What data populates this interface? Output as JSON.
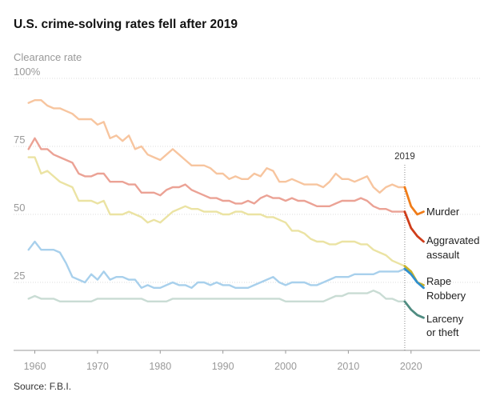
{
  "title": "U.S. crime-solving rates fell after 2019",
  "source": "Source: F.B.I.",
  "chart_data": {
    "type": "line",
    "title": "U.S. crime-solving rates fell after 2019",
    "ylabel": "Clearance rate",
    "xlim": [
      1957,
      2031
    ],
    "ylim": [
      0,
      100
    ],
    "x_ticks": [
      1960,
      1970,
      1980,
      1990,
      2000,
      2010,
      2020
    ],
    "y_ticks": [
      {
        "value": 100,
        "label": "100%"
      },
      {
        "value": 75,
        "label": "75"
      },
      {
        "value": 50,
        "label": "50"
      },
      {
        "value": 25,
        "label": "25"
      }
    ],
    "grid": "horizontal dotted",
    "annotation": {
      "x": 2019,
      "label": "2019"
    },
    "series": [
      {
        "name": "Murder",
        "color": "#f7c59f",
        "highlight_color": "#f07d1a",
        "x": [
          1959,
          1960,
          1961,
          1962,
          1963,
          1964,
          1965,
          1966,
          1967,
          1968,
          1969,
          1970,
          1971,
          1972,
          1973,
          1974,
          1975,
          1976,
          1977,
          1978,
          1979,
          1980,
          1981,
          1982,
          1983,
          1984,
          1985,
          1986,
          1987,
          1988,
          1989,
          1990,
          1991,
          1992,
          1993,
          1994,
          1995,
          1996,
          1997,
          1998,
          1999,
          2000,
          2001,
          2002,
          2003,
          2004,
          2005,
          2006,
          2007,
          2008,
          2009,
          2010,
          2011,
          2012,
          2013,
          2014,
          2015,
          2016,
          2017,
          2018,
          2019,
          2020,
          2021,
          2022
        ],
        "values": [
          91,
          92,
          92,
          90,
          89,
          89,
          88,
          87,
          85,
          85,
          85,
          83,
          84,
          78,
          79,
          77,
          79,
          74,
          75,
          72,
          71,
          70,
          72,
          74,
          72,
          70,
          68,
          68,
          68,
          67,
          65,
          65,
          63,
          64,
          63,
          63,
          65,
          64,
          67,
          66,
          62,
          62,
          63,
          62,
          61,
          61,
          61,
          60,
          62,
          65,
          63,
          63,
          62,
          63,
          64,
          60,
          58,
          60,
          61,
          60,
          60,
          53,
          50,
          51
        ]
      },
      {
        "name": "Aggravated assault",
        "color": "#eba295",
        "highlight_color": "#cf3d1a",
        "x": [
          1959,
          1960,
          1961,
          1962,
          1963,
          1964,
          1965,
          1966,
          1967,
          1968,
          1969,
          1970,
          1971,
          1972,
          1973,
          1974,
          1975,
          1976,
          1977,
          1978,
          1979,
          1980,
          1981,
          1982,
          1983,
          1984,
          1985,
          1986,
          1987,
          1988,
          1989,
          1990,
          1991,
          1992,
          1993,
          1994,
          1995,
          1996,
          1997,
          1998,
          1999,
          2000,
          2001,
          2002,
          2003,
          2004,
          2005,
          2006,
          2007,
          2008,
          2009,
          2010,
          2011,
          2012,
          2013,
          2014,
          2015,
          2016,
          2017,
          2018,
          2019,
          2020,
          2021,
          2022
        ],
        "values": [
          74,
          78,
          74,
          74,
          72,
          71,
          70,
          69,
          65,
          64,
          64,
          65,
          65,
          62,
          62,
          62,
          61,
          61,
          58,
          58,
          58,
          57,
          59,
          60,
          60,
          61,
          59,
          58,
          57,
          56,
          56,
          55,
          55,
          54,
          54,
          55,
          54,
          56,
          57,
          56,
          56,
          55,
          56,
          55,
          55,
          54,
          53,
          53,
          53,
          54,
          55,
          55,
          55,
          56,
          55,
          53,
          52,
          52,
          51,
          51,
          51,
          45,
          42,
          40
        ]
      },
      {
        "name": "Rape",
        "color": "#ebe3a3",
        "highlight_color": "#c8b32b",
        "x": [
          1959,
          1960,
          1961,
          1962,
          1963,
          1964,
          1965,
          1966,
          1967,
          1968,
          1969,
          1970,
          1971,
          1972,
          1973,
          1974,
          1975,
          1976,
          1977,
          1978,
          1979,
          1980,
          1981,
          1982,
          1983,
          1984,
          1985,
          1986,
          1987,
          1988,
          1989,
          1990,
          1991,
          1992,
          1993,
          1994,
          1995,
          1996,
          1997,
          1998,
          1999,
          2000,
          2001,
          2002,
          2003,
          2004,
          2005,
          2006,
          2007,
          2008,
          2009,
          2010,
          2011,
          2012,
          2013,
          2014,
          2015,
          2016,
          2017,
          2018,
          2019,
          2020,
          2021,
          2022
        ],
        "values": [
          71,
          71,
          65,
          66,
          64,
          62,
          61,
          60,
          55,
          55,
          55,
          54,
          55,
          50,
          50,
          50,
          51,
          50,
          49,
          47,
          48,
          47,
          49,
          51,
          52,
          53,
          52,
          52,
          51,
          51,
          51,
          50,
          50,
          51,
          51,
          50,
          50,
          50,
          49,
          49,
          48,
          47,
          44,
          44,
          43,
          41,
          40,
          40,
          39,
          39,
          40,
          40,
          40,
          39,
          39,
          37,
          36,
          35,
          33,
          32,
          31,
          29,
          25,
          24
        ]
      },
      {
        "name": "Robbery",
        "color": "#a8d0ec",
        "highlight_color": "#2f8fce",
        "x": [
          1959,
          1960,
          1961,
          1962,
          1963,
          1964,
          1965,
          1966,
          1967,
          1968,
          1969,
          1970,
          1971,
          1972,
          1973,
          1974,
          1975,
          1976,
          1977,
          1978,
          1979,
          1980,
          1981,
          1982,
          1983,
          1984,
          1985,
          1986,
          1987,
          1988,
          1989,
          1990,
          1991,
          1992,
          1993,
          1994,
          1995,
          1996,
          1997,
          1998,
          1999,
          2000,
          2001,
          2002,
          2003,
          2004,
          2005,
          2006,
          2007,
          2008,
          2009,
          2010,
          2011,
          2012,
          2013,
          2014,
          2015,
          2016,
          2017,
          2018,
          2019,
          2020,
          2021,
          2022
        ],
        "values": [
          37,
          40,
          37,
          37,
          37,
          36,
          32,
          27,
          26,
          25,
          28,
          26,
          29,
          26,
          27,
          27,
          26,
          26,
          23,
          24,
          23,
          23,
          24,
          25,
          24,
          24,
          23,
          25,
          25,
          24,
          25,
          24,
          24,
          23,
          23,
          23,
          24,
          25,
          26,
          27,
          25,
          24,
          25,
          25,
          25,
          24,
          24,
          25,
          26,
          27,
          27,
          27,
          28,
          28,
          28,
          28,
          29,
          29,
          29,
          29,
          30,
          28,
          25,
          23
        ]
      },
      {
        "name": "Larceny or theft",
        "color": "#c9dcd4",
        "highlight_color": "#4f8c81",
        "x": [
          1959,
          1960,
          1961,
          1962,
          1963,
          1964,
          1965,
          1966,
          1967,
          1968,
          1969,
          1970,
          1971,
          1972,
          1973,
          1974,
          1975,
          1976,
          1977,
          1978,
          1979,
          1980,
          1981,
          1982,
          1983,
          1984,
          1985,
          1986,
          1987,
          1988,
          1989,
          1990,
          1991,
          1992,
          1993,
          1994,
          1995,
          1996,
          1997,
          1998,
          1999,
          2000,
          2001,
          2002,
          2003,
          2004,
          2005,
          2006,
          2007,
          2008,
          2009,
          2010,
          2011,
          2012,
          2013,
          2014,
          2015,
          2016,
          2017,
          2018,
          2019,
          2020,
          2021,
          2022
        ],
        "values": [
          19,
          20,
          19,
          19,
          19,
          18,
          18,
          18,
          18,
          18,
          18,
          19,
          19,
          19,
          19,
          19,
          19,
          19,
          19,
          18,
          18,
          18,
          18,
          19,
          19,
          19,
          19,
          19,
          19,
          19,
          19,
          19,
          19,
          19,
          19,
          19,
          19,
          19,
          19,
          19,
          19,
          18,
          18,
          18,
          18,
          18,
          18,
          18,
          19,
          20,
          20,
          21,
          21,
          21,
          21,
          22,
          21,
          19,
          19,
          18,
          18,
          15,
          13,
          12
        ]
      }
    ],
    "labels": [
      {
        "series": "Murder",
        "text": "Murder"
      },
      {
        "series": "Aggravated assault",
        "text": "Aggravated assault"
      },
      {
        "series": "Rape",
        "text": "Rape"
      },
      {
        "series": "Robbery",
        "text": "Robbery"
      },
      {
        "series": "Larceny or theft",
        "text": "Larceny or theft"
      }
    ]
  }
}
